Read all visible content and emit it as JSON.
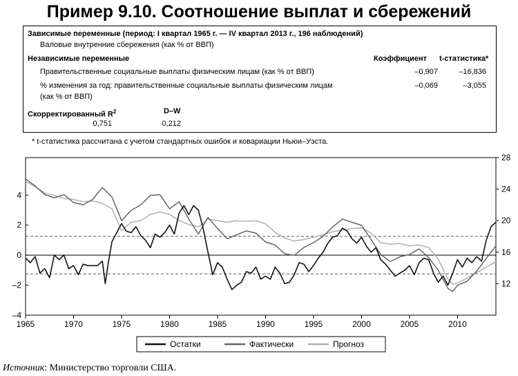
{
  "title": "Пример 9.10. Соотношение выплат и сбережений",
  "table": {
    "dependent_header": "Зависимые переменные (период: I квартал 1965 г. — IV квартал 2013 г., 196 наблюдений)",
    "dependent_var": "Валовые внутренние сбережения (как % от ВВП)",
    "independent_header": "Независимые переменные",
    "coef_header": "Коэффициент",
    "t_header": "t-статистика*",
    "rows": [
      {
        "name": "Правительственные социальные выплаты физическим лицам (как % от ВВП)",
        "name2": "",
        "coef": "–0,907",
        "t": "–16,836"
      },
      {
        "name": "% изменения за год: правительственные социальные выплаты физическим лицам",
        "name2": "(как % от ВВП)",
        "coef": "–0,069",
        "t": "–3,055"
      }
    ],
    "r2_label": "Скорректированный R",
    "r2_sup": "2",
    "r2_value": "0,751",
    "dw_label": "D–W",
    "dw_value": "0,212"
  },
  "footnote": "* t-статистика рассчитана с учетом стандартных ошибок и ковариации Ньюи–Уэста.",
  "source_label": "Источник",
  "source_text": ": Министерство торговли США.",
  "chart_data": {
    "type": "line",
    "x_ticks": [
      "1965",
      "1970",
      "1975",
      "1980",
      "1985",
      "1990",
      "1995",
      "2000",
      "2005",
      "2010"
    ],
    "xlim": [
      1965,
      2014
    ],
    "y_left": {
      "ticks": [
        "–4",
        "–2",
        "0",
        "2",
        "4"
      ],
      "lim": [
        -4,
        6.5
      ],
      "ref_lines": [
        1.25,
        -1.25
      ]
    },
    "y_right": {
      "ticks": [
        "12",
        "16",
        "20",
        "24",
        "28"
      ],
      "lim": [
        8,
        28
      ]
    },
    "grid": false,
    "legend_position": "bottom",
    "series": [
      {
        "name": "Остатки",
        "axis": "left",
        "color": "#111111",
        "width": 1.6,
        "points": [
          [
            1965.0,
            -0.2
          ],
          [
            1965.5,
            -0.5
          ],
          [
            1966.0,
            -0.1
          ],
          [
            1966.5,
            -1.2
          ],
          [
            1967.0,
            -0.9
          ],
          [
            1967.5,
            -1.5
          ],
          [
            1968.0,
            0.0
          ],
          [
            1968.5,
            -0.3
          ],
          [
            1969.0,
            0.0
          ],
          [
            1969.5,
            -0.9
          ],
          [
            1970.0,
            -0.7
          ],
          [
            1970.5,
            -1.3
          ],
          [
            1971.0,
            -0.6
          ],
          [
            1971.5,
            -0.7
          ],
          [
            1972.0,
            -0.7
          ],
          [
            1972.5,
            -0.7
          ],
          [
            1973.0,
            -0.4
          ],
          [
            1973.3,
            -1.9
          ],
          [
            1973.6,
            -0.6
          ],
          [
            1974.0,
            0.9
          ],
          [
            1974.5,
            1.5
          ],
          [
            1975.0,
            2.1
          ],
          [
            1975.5,
            1.6
          ],
          [
            1976.0,
            1.5
          ],
          [
            1976.5,
            1.9
          ],
          [
            1977.0,
            1.3
          ],
          [
            1977.5,
            1.0
          ],
          [
            1978.0,
            0.5
          ],
          [
            1978.5,
            1.4
          ],
          [
            1979.0,
            1.2
          ],
          [
            1979.5,
            1.5
          ],
          [
            1980.0,
            2.0
          ],
          [
            1980.5,
            1.4
          ],
          [
            1981.0,
            2.8
          ],
          [
            1981.5,
            3.3
          ],
          [
            1982.0,
            2.7
          ],
          [
            1982.5,
            3.3
          ],
          [
            1983.0,
            3.0
          ],
          [
            1983.5,
            1.8
          ],
          [
            1984.0,
            0.2
          ],
          [
            1984.5,
            -1.3
          ],
          [
            1985.0,
            -0.5
          ],
          [
            1985.5,
            -0.8
          ],
          [
            1986.0,
            -1.6
          ],
          [
            1986.5,
            -2.3
          ],
          [
            1987.0,
            -2.0
          ],
          [
            1987.5,
            -1.8
          ],
          [
            1988.0,
            -1.1
          ],
          [
            1988.5,
            -1.2
          ],
          [
            1989.0,
            -0.8
          ],
          [
            1989.5,
            -1.6
          ],
          [
            1990.0,
            -1.4
          ],
          [
            1990.5,
            -1.6
          ],
          [
            1991.0,
            -0.8
          ],
          [
            1991.5,
            -1.2
          ],
          [
            1992.0,
            -1.9
          ],
          [
            1992.5,
            -1.8
          ],
          [
            1993.0,
            -1.3
          ],
          [
            1993.5,
            -0.5
          ],
          [
            1994.0,
            -0.6
          ],
          [
            1994.5,
            -1.1
          ],
          [
            1995.0,
            -0.7
          ],
          [
            1995.5,
            -0.2
          ],
          [
            1996.0,
            0.2
          ],
          [
            1996.5,
            0.8
          ],
          [
            1997.0,
            1.2
          ],
          [
            1997.5,
            1.3
          ],
          [
            1998.0,
            1.8
          ],
          [
            1998.5,
            1.6
          ],
          [
            1999.0,
            1.1
          ],
          [
            1999.5,
            0.8
          ],
          [
            2000.0,
            1.2
          ],
          [
            2000.5,
            0.6
          ],
          [
            2001.0,
            0.2
          ],
          [
            2001.5,
            0.5
          ],
          [
            2002.0,
            -0.3
          ],
          [
            2002.5,
            -0.6
          ],
          [
            2003.0,
            -1.0
          ],
          [
            2003.5,
            -1.4
          ],
          [
            2004.0,
            -1.2
          ],
          [
            2004.5,
            -1.0
          ],
          [
            2005.0,
            -0.7
          ],
          [
            2005.5,
            -1.3
          ],
          [
            2006.0,
            -0.5
          ],
          [
            2006.5,
            -0.2
          ],
          [
            2007.0,
            -0.3
          ],
          [
            2007.5,
            -1.2
          ],
          [
            2008.0,
            -1.8
          ],
          [
            2008.5,
            -1.4
          ],
          [
            2009.0,
            -2.0
          ],
          [
            2009.5,
            -1.2
          ],
          [
            2010.0,
            -0.3
          ],
          [
            2010.5,
            -0.8
          ],
          [
            2011.0,
            -0.2
          ],
          [
            2011.5,
            -0.5
          ],
          [
            2012.0,
            -0.1
          ],
          [
            2012.5,
            -0.4
          ],
          [
            2013.0,
            1.0
          ],
          [
            2013.5,
            1.9
          ],
          [
            2014.0,
            2.2
          ]
        ]
      },
      {
        "name": "Фактически",
        "axis": "right",
        "color": "#666666",
        "width": 1.5,
        "points": [
          [
            1965.0,
            25.3
          ],
          [
            1966.0,
            24.4
          ],
          [
            1967.0,
            23.3
          ],
          [
            1968.0,
            22.9
          ],
          [
            1969.0,
            23.3
          ],
          [
            1970.0,
            22.3
          ],
          [
            1971.0,
            22.0
          ],
          [
            1972.0,
            22.7
          ],
          [
            1973.0,
            24.2
          ],
          [
            1974.0,
            23.0
          ],
          [
            1975.0,
            20.0
          ],
          [
            1976.0,
            21.3
          ],
          [
            1977.0,
            22.0
          ],
          [
            1978.0,
            23.2
          ],
          [
            1979.0,
            23.3
          ],
          [
            1980.0,
            21.5
          ],
          [
            1981.0,
            22.4
          ],
          [
            1982.0,
            20.2
          ],
          [
            1983.0,
            18.3
          ],
          [
            1984.0,
            20.4
          ],
          [
            1985.0,
            19.0
          ],
          [
            1986.0,
            17.7
          ],
          [
            1987.0,
            18.2
          ],
          [
            1988.0,
            18.7
          ],
          [
            1989.0,
            18.4
          ],
          [
            1990.0,
            17.3
          ],
          [
            1991.0,
            16.9
          ],
          [
            1992.0,
            15.8
          ],
          [
            1993.0,
            15.6
          ],
          [
            1994.0,
            16.6
          ],
          [
            1995.0,
            17.2
          ],
          [
            1996.0,
            18.0
          ],
          [
            1997.0,
            19.2
          ],
          [
            1998.0,
            20.2
          ],
          [
            1999.0,
            19.8
          ],
          [
            2000.0,
            19.4
          ],
          [
            2001.0,
            17.6
          ],
          [
            2002.0,
            15.7
          ],
          [
            2003.0,
            14.8
          ],
          [
            2004.0,
            15.4
          ],
          [
            2005.0,
            15.7
          ],
          [
            2006.0,
            16.4
          ],
          [
            2007.0,
            15.3
          ],
          [
            2008.0,
            13.7
          ],
          [
            2009.0,
            11.4
          ],
          [
            2009.5,
            11.0
          ],
          [
            2010.0,
            11.8
          ],
          [
            2011.0,
            12.3
          ],
          [
            2012.0,
            13.6
          ],
          [
            2013.0,
            15.2
          ],
          [
            2014.0,
            16.8
          ]
        ]
      },
      {
        "name": "Прогноз",
        "axis": "right",
        "color": "#b0b0b0",
        "width": 1.5,
        "points": [
          [
            1965.0,
            25.0
          ],
          [
            1966.0,
            24.3
          ],
          [
            1967.0,
            23.5
          ],
          [
            1968.0,
            23.2
          ],
          [
            1969.0,
            22.8
          ],
          [
            1970.0,
            22.7
          ],
          [
            1971.0,
            22.4
          ],
          [
            1972.0,
            22.5
          ],
          [
            1973.0,
            22.2
          ],
          [
            1974.0,
            21.5
          ],
          [
            1975.0,
            18.7
          ],
          [
            1976.0,
            19.8
          ],
          [
            1977.0,
            20.0
          ],
          [
            1978.0,
            20.8
          ],
          [
            1979.0,
            21.1
          ],
          [
            1980.0,
            20.8
          ],
          [
            1981.0,
            20.0
          ],
          [
            1982.0,
            19.5
          ],
          [
            1983.0,
            19.2
          ],
          [
            1984.0,
            20.2
          ],
          [
            1985.0,
            20.0
          ],
          [
            1986.0,
            19.8
          ],
          [
            1987.0,
            20.0
          ],
          [
            1988.0,
            19.9
          ],
          [
            1989.0,
            20.0
          ],
          [
            1990.0,
            19.6
          ],
          [
            1991.0,
            18.5
          ],
          [
            1992.0,
            17.8
          ],
          [
            1993.0,
            17.4
          ],
          [
            1994.0,
            17.6
          ],
          [
            1995.0,
            17.9
          ],
          [
            1996.0,
            18.2
          ],
          [
            1997.0,
            18.6
          ],
          [
            1998.0,
            18.8
          ],
          [
            1999.0,
            19.0
          ],
          [
            2000.0,
            19.1
          ],
          [
            2001.0,
            18.4
          ],
          [
            2002.0,
            17.2
          ],
          [
            2003.0,
            17.0
          ],
          [
            2004.0,
            17.1
          ],
          [
            2005.0,
            16.8
          ],
          [
            2006.0,
            16.9
          ],
          [
            2007.0,
            16.6
          ],
          [
            2008.0,
            15.1
          ],
          [
            2009.0,
            12.6
          ],
          [
            2009.5,
            11.9
          ],
          [
            2010.0,
            12.1
          ],
          [
            2011.0,
            12.7
          ],
          [
            2012.0,
            13.4
          ],
          [
            2013.0,
            14.1
          ],
          [
            2014.0,
            14.8
          ]
        ]
      }
    ]
  }
}
